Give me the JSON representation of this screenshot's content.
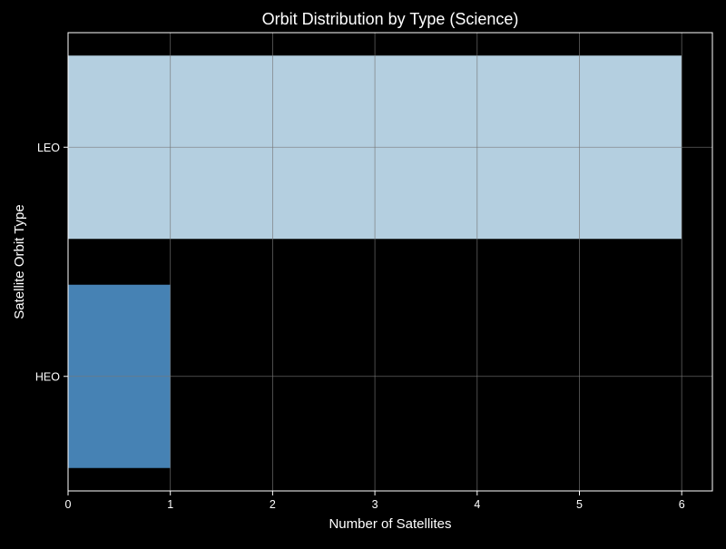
{
  "chart_data": {
    "type": "bar",
    "orientation": "horizontal",
    "title": "Orbit Distribution by Type (Science)",
    "xlabel": "Number of Satellites",
    "ylabel": "Satellite Orbit Type",
    "categories": [
      "HEO",
      "LEO"
    ],
    "values": [
      1,
      6
    ],
    "bar_colors": [
      "#4682b4",
      "#b4cfe0"
    ],
    "xlim": [
      0,
      6.3
    ],
    "xticks": [
      "0",
      "1",
      "2",
      "3",
      "4",
      "5",
      "6"
    ],
    "grid": true,
    "legend": "none"
  },
  "colors": {
    "background": "#000000",
    "axes_edge": "#ffffff",
    "grid": "#777777",
    "text": "#ffffff"
  }
}
